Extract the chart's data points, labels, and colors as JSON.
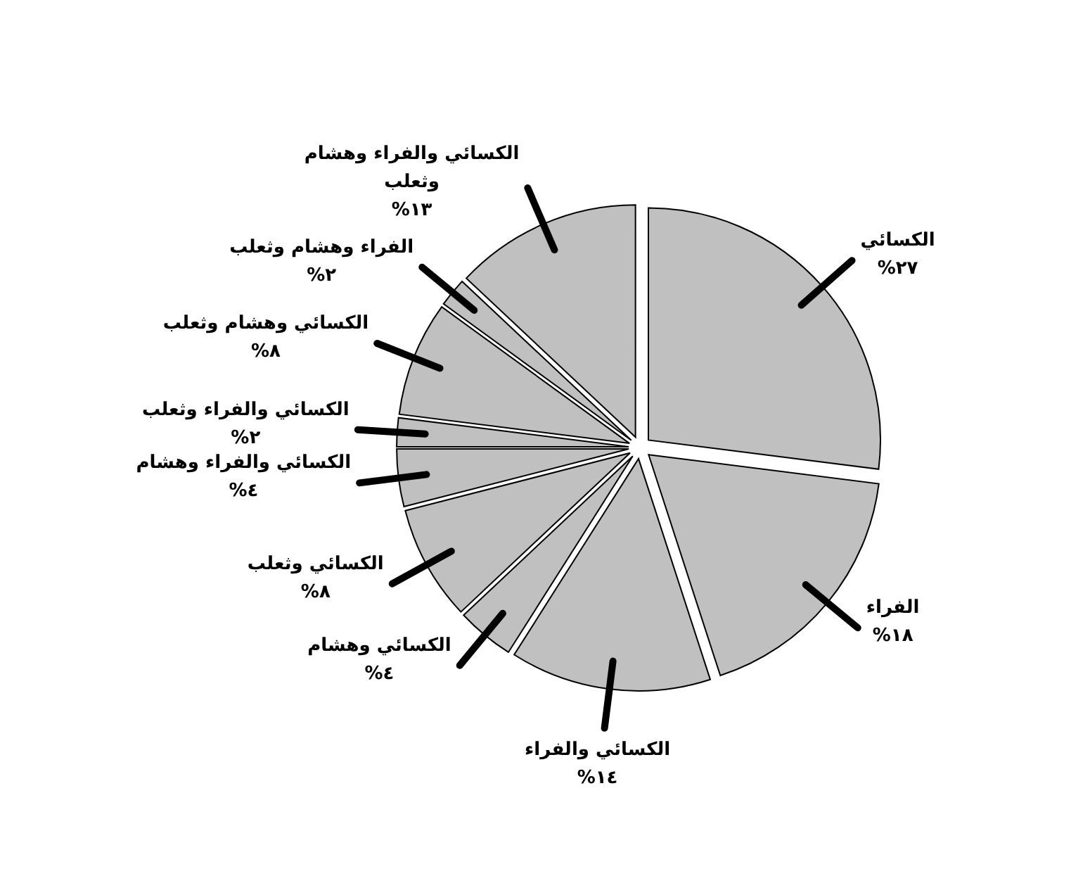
{
  "chart_data": {
    "type": "pie",
    "color": "#c0c0c0",
    "categories": [
      "الكسائي",
      "الفراء",
      "الكسائي والفراء",
      "الكسائي وهشام",
      "الكسائي وثعلب",
      "الكسائي والفراء وهشام",
      "الكسائي والفراء وثعلب",
      "الكسائي وهشام وثعلب",
      "الفراء وهشام وثعلب",
      "الكسائي والفراء وهشام وثعلب"
    ],
    "values": [
      27,
      18,
      14,
      4,
      8,
      4,
      2,
      8,
      2,
      13
    ],
    "value_labels": [
      "٢٧%",
      "١٨%",
      "١٤%",
      "٤%",
      "٨%",
      "٤%",
      "٢%",
      "٨%",
      "٢%",
      "١٣%"
    ]
  }
}
